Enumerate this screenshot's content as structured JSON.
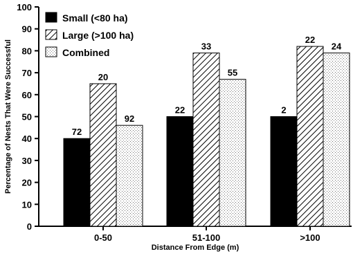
{
  "chart_data": {
    "type": "bar",
    "categories": [
      "0-50",
      "51-100",
      ">100"
    ],
    "series": [
      {
        "name": "Small (<80 ha)",
        "pattern": "solid",
        "values": [
          40,
          50,
          50
        ],
        "labels": [
          "72",
          "22",
          "2"
        ]
      },
      {
        "name": "Large (>100 ha)",
        "pattern": "hatch",
        "values": [
          65,
          79,
          82
        ],
        "labels": [
          "20",
          "33",
          "22"
        ]
      },
      {
        "name": "Combined",
        "pattern": "stipple",
        "values": [
          46,
          67,
          79
        ],
        "labels": [
          "92",
          "55",
          "24"
        ]
      }
    ],
    "xlabel": "Distance From Edge (m)",
    "ylabel": "Percentage of Nests That Were Successful",
    "ylim": [
      0,
      100
    ],
    "yticks": [
      0,
      10,
      20,
      30,
      40,
      50,
      60,
      70,
      80,
      90,
      100
    ],
    "grid": false,
    "legend_position": "top-left",
    "colors": {
      "ink": "#000000",
      "background": "#ffffff"
    }
  }
}
